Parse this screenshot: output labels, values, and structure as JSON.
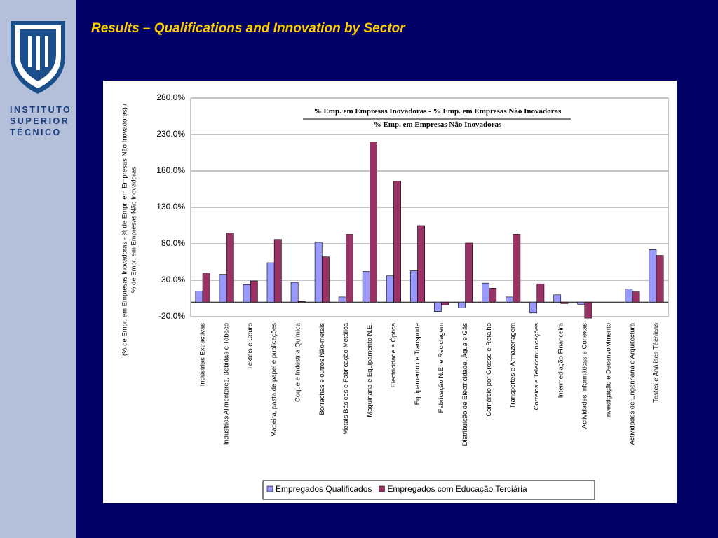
{
  "header": {
    "title": "Results – Qualifications and Innovation by Sector"
  },
  "logo": {
    "lines": [
      "INSTITUTO",
      "SUPERIOR",
      "TÉCNICO"
    ]
  },
  "chart_data": {
    "type": "bar",
    "formula": {
      "numerator": "% Emp. em Empresas Inovadoras - % Emp. em Empresas Não Inovadoras",
      "denominator": "% Emp. em Empresas Não Inovadoras"
    },
    "ylabel": [
      "(% de Empr. em Empresas Inovadoras - % de Empr. em Empresas Não Inovadoras) /",
      "% de Empr. em Empresas Não Inovadoras"
    ],
    "categories": [
      "Indústrias Extractivas",
      "Indústrias Alimentares, Bebidas e Tabaco",
      "Têxteis e Couro",
      "Madeira, pasta de papel e publicações",
      "Coque e Indústria Química",
      "Borrachas e outros Não-metais",
      "Metais Básicos e Fabricação Metálica",
      "Maquinaria e Equipamento N.E.",
      "Electricidade e Óptica",
      "Equipamento de Transporte",
      "Fabricação N.E. e Reciclagem",
      "Distribuição de Electricidade, Água e Gás",
      "Comércio por Grosso e Retalho",
      "Transportes e Armazenagem",
      "Correios e Telecomunicações",
      "Intermediação Financeira",
      "Actividades Informáticas e Conexas",
      "Investigação e Desenvolvimento",
      "Actividades de Engenharia e Arquitectura",
      "Testes e Análises Técnicas"
    ],
    "series": [
      {
        "name": "Empregados Qualificados",
        "color": "#9999ff",
        "values": [
          15,
          38,
          24,
          54,
          27,
          82,
          7,
          42,
          36,
          43,
          -13,
          -8,
          26,
          7,
          -15,
          10,
          -3,
          null,
          18,
          72
        ]
      },
      {
        "name": "Empregados com Educação Terciária",
        "color": "#993366",
        "values": [
          40,
          95,
          29,
          86,
          1,
          62,
          93,
          220,
          166,
          105,
          -4,
          81,
          19,
          93,
          25,
          -2,
          -22,
          null,
          14,
          64
        ]
      }
    ],
    "ylim": [
      -20,
      280
    ],
    "yticks": [
      {
        "value": -20,
        "label": "-20.0%"
      },
      {
        "value": 30,
        "label": "30.0%"
      },
      {
        "value": 80,
        "label": "80.0%"
      },
      {
        "value": 130,
        "label": "130.0%"
      },
      {
        "value": 180,
        "label": "180.0%"
      },
      {
        "value": 230,
        "label": "230.0%"
      },
      {
        "value": 280,
        "label": "280.0%"
      }
    ],
    "grid": true,
    "legend": "bottom"
  }
}
